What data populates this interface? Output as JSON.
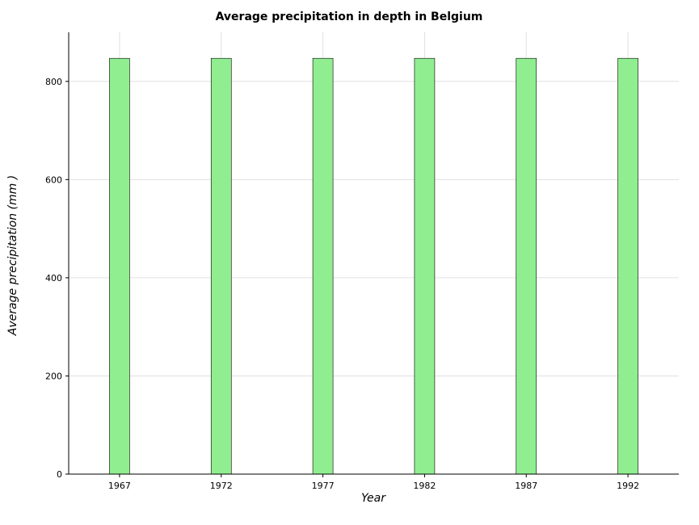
{
  "chart_data": {
    "type": "bar",
    "title": "Average precipitation in depth in Belgium",
    "xlabel": "Year",
    "ylabel": "Average precipitation (mm )",
    "categories": [
      "1967",
      "1972",
      "1977",
      "1982",
      "1987",
      "1992"
    ],
    "values": [
      847,
      847,
      847,
      847,
      847,
      847
    ],
    "ylim": [
      0,
      900
    ],
    "yticks": [
      0,
      200,
      400,
      600,
      800
    ],
    "grid": true,
    "colors": {
      "bar_fill": "#90ee90",
      "bar_stroke": "#000000",
      "grid": "#e0e0e0"
    }
  }
}
